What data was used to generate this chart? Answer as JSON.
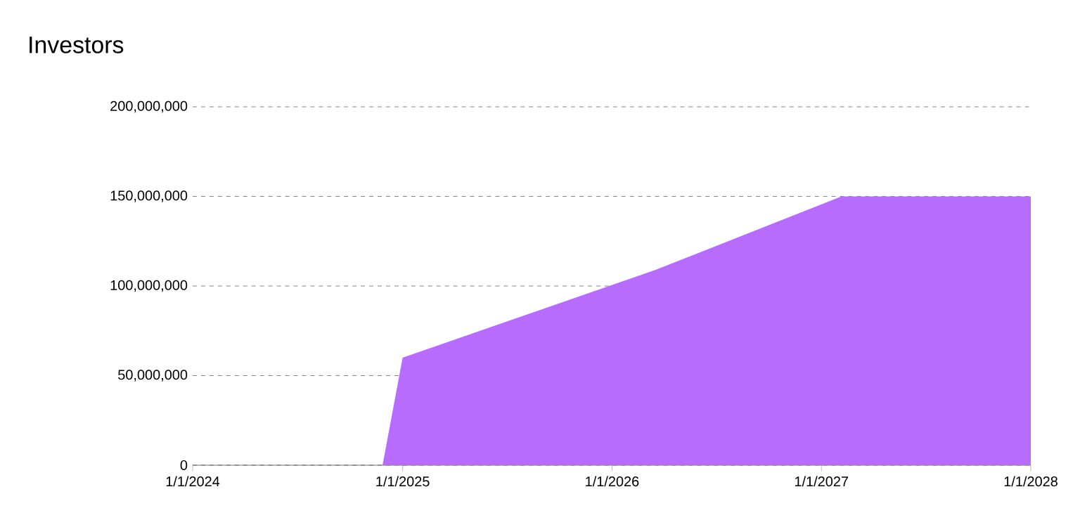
{
  "chart_data": {
    "type": "area",
    "title": "Investors",
    "x": [
      "2024-01-01",
      "2024-11-27",
      "2025-01-01",
      "2026-03-18",
      "2027-02-05",
      "2028-01-01"
    ],
    "series": [
      {
        "color": "#b76cfd",
        "values": [
          0,
          0,
          60000000,
          109000000,
          150000000,
          150000000
        ]
      }
    ],
    "xlim": [
      "2024-01-01",
      "2028-01-01"
    ],
    "xticks": [
      {
        "value": "2024-01-01",
        "label": "1/1/2024"
      },
      {
        "value": "2025-01-01",
        "label": "1/1/2025"
      },
      {
        "value": "2026-01-01",
        "label": "1/1/2026"
      },
      {
        "value": "2027-01-01",
        "label": "1/1/2027"
      },
      {
        "value": "2028-01-01",
        "label": "1/1/2028"
      }
    ],
    "ylim": [
      0,
      200000000
    ],
    "yticks": [
      0,
      {
        "value": 50000000,
        "label": "50,000,000"
      },
      {
        "value": 100000000,
        "label": "100,000,000"
      },
      {
        "value": 150000000,
        "label": "150,000,000"
      },
      {
        "value": 200000000,
        "label": "200,000,000"
      }
    ],
    "grid": "y",
    "line_style": "dashed"
  }
}
